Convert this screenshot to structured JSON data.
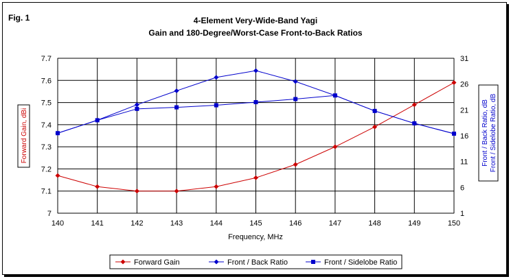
{
  "fig_label": "Fig. 1",
  "chart_data": {
    "type": "line",
    "title": "4-Element Very-Wide-Band Yagi",
    "subtitle": "Gain and 180-Degree/Worst-Case Front-to-Back Ratios",
    "xlabel": "Frequency, MHz",
    "ylabel_left": "Forward Gain, dBi",
    "ylabel_right_1": "Front / Back Ratio,  dB",
    "ylabel_right_2": "Front / Sidelobe Ratio,  dB",
    "x": [
      140,
      141,
      142,
      143,
      144,
      145,
      146,
      147,
      148,
      149,
      150
    ],
    "x_ticks": [
      "140",
      "141",
      "142",
      "143",
      "144",
      "145",
      "146",
      "147",
      "148",
      "149",
      "150"
    ],
    "y_left_ticks": [
      "7",
      "7.1",
      "7.2",
      "7.3",
      "7.4",
      "7.5",
      "7.6",
      "7.7"
    ],
    "y_right_ticks": [
      "1",
      "6",
      "11",
      "16",
      "21",
      "26",
      "31"
    ],
    "ylim_left": [
      7,
      7.7
    ],
    "ylim_right": [
      1,
      31
    ],
    "grid": true,
    "legend_position": "bottom",
    "series": [
      {
        "name": "Forward Gain",
        "axis": "left",
        "color": "#cc0000",
        "marker": "diamond",
        "values": [
          7.17,
          7.12,
          7.1,
          7.1,
          7.12,
          7.16,
          7.22,
          7.3,
          7.39,
          7.49,
          7.59
        ]
      },
      {
        "name": "Front / Back Ratio",
        "axis": "right",
        "color": "#0000cc",
        "marker": "diamond",
        "values": [
          16.5,
          19.0,
          22.0,
          24.7,
          27.3,
          28.6,
          26.5,
          23.8,
          20.8,
          18.4,
          16.4
        ]
      },
      {
        "name": "Front / Sidelobe Ratio",
        "axis": "right",
        "color": "#0000cc",
        "marker": "square",
        "values": [
          16.5,
          19.0,
          21.2,
          21.5,
          21.9,
          22.5,
          23.1,
          23.8,
          20.8,
          18.4,
          16.4
        ]
      }
    ]
  }
}
